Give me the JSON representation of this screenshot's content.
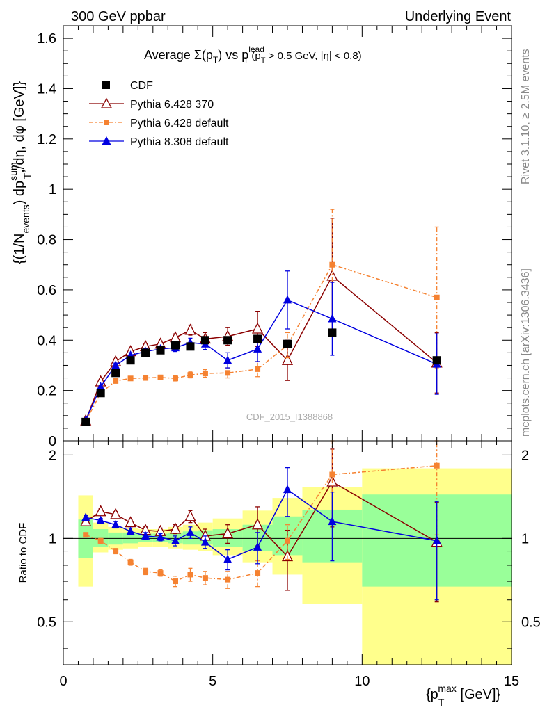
{
  "header": {
    "left": "300 GeV ppbar",
    "right": "Underlying Event"
  },
  "side_labels": {
    "rivet": "Rivet 3.1.10, ≥ 2.5M events",
    "mcplots": "mcplots.cern.ch [arXiv:1306.3436]"
  },
  "chart_data": [
    {
      "type": "line",
      "title_main": "Average Σ(p",
      "title_sub1": "T",
      "title_mid": ") vs p",
      "title_sup": "lead",
      "title_sub2": "T",
      "title_tail": " (p",
      "title_sub3": "T",
      "title_end": " > 0.5 GeV, |η| < 0.8)",
      "ylabel": "{(1/N events) dp T sum /dη, dφ [GeV]}",
      "ylabel_parts": {
        "a": "{(1/N",
        "a_sub": "events",
        "b": ") dp",
        "b_sup": "sum",
        "b_sub": "T",
        "c": ",/dη, dφ [GeV]}"
      },
      "watermark": "CDF_2015_I1388868",
      "xlim": [
        0,
        15
      ],
      "ylim": [
        0,
        1.65
      ],
      "y_ticks": [
        "0",
        "0.2",
        "0.4",
        "0.6",
        "0.8",
        "1",
        "1.2",
        "1.4",
        "1.6"
      ],
      "legend_position": "top-left",
      "series": [
        {
          "name": "CDF",
          "color": "#000000",
          "marker": "square",
          "x": [
            0.75,
            1.25,
            1.75,
            2.25,
            2.75,
            3.25,
            3.75,
            4.25,
            4.75,
            5.5,
            6.5,
            7.5,
            9.0,
            12.5
          ],
          "y": [
            0.075,
            0.19,
            0.27,
            0.32,
            0.35,
            0.36,
            0.38,
            0.375,
            0.4,
            0.4,
            0.405,
            0.385,
            0.43,
            0.32
          ],
          "yerr": [
            0,
            0,
            0,
            0,
            0,
            0,
            0,
            0,
            0,
            0,
            0,
            0,
            0,
            0
          ]
        },
        {
          "name": "Pythia 6.428 370",
          "color": "#8b0000",
          "marker": "open-triangle",
          "x": [
            0.75,
            1.25,
            1.75,
            2.25,
            2.75,
            3.25,
            3.75,
            4.25,
            4.75,
            5.5,
            6.5,
            7.5,
            9.0,
            12.5
          ],
          "y": [
            0.08,
            0.235,
            0.315,
            0.355,
            0.375,
            0.385,
            0.41,
            0.44,
            0.405,
            0.415,
            0.445,
            0.32,
            0.655,
            0.31
          ],
          "yerr": [
            0.005,
            0.008,
            0.01,
            0.01,
            0.012,
            0.012,
            0.015,
            0.02,
            0.025,
            0.035,
            0.07,
            0.08,
            0.23,
            0.12
          ]
        },
        {
          "name": "Pythia 6.428 default",
          "color": "#f58231",
          "marker": "small-square",
          "x": [
            0.75,
            1.25,
            1.75,
            2.25,
            2.75,
            3.25,
            3.75,
            4.25,
            4.75,
            5.5,
            6.5,
            7.5,
            9.0,
            12.5
          ],
          "y": [
            0.078,
            0.19,
            0.238,
            0.248,
            0.25,
            0.252,
            0.248,
            0.262,
            0.268,
            0.27,
            0.285,
            0.38,
            0.7,
            0.57
          ],
          "yerr": [
            0.004,
            0.006,
            0.008,
            0.008,
            0.009,
            0.009,
            0.01,
            0.012,
            0.015,
            0.02,
            0.03,
            0.05,
            0.22,
            0.28
          ]
        },
        {
          "name": "Pythia 8.308 default",
          "color": "#0000e0",
          "marker": "triangle",
          "x": [
            0.75,
            1.25,
            1.75,
            2.25,
            2.75,
            3.25,
            3.75,
            4.25,
            4.75,
            5.5,
            6.5,
            7.5,
            9.0,
            12.5
          ],
          "y": [
            0.082,
            0.215,
            0.3,
            0.34,
            0.355,
            0.365,
            0.37,
            0.39,
            0.385,
            0.32,
            0.365,
            0.56,
            0.485,
            0.305
          ],
          "yerr": [
            0.004,
            0.007,
            0.009,
            0.01,
            0.011,
            0.012,
            0.015,
            0.018,
            0.022,
            0.03,
            0.05,
            0.115,
            0.145,
            0.12
          ]
        }
      ]
    },
    {
      "type": "line",
      "ylabel": "Ratio to CDF",
      "xlabel_a": "{p",
      "xlabel_sub": "T",
      "xlabel_sup": "max",
      "xlabel_b": " [GeV]}",
      "xlim": [
        0,
        15
      ],
      "ylim": [
        0.35,
        2.25
      ],
      "x_ticks": [
        "0",
        "5",
        "10",
        "15"
      ],
      "y_ticks": [
        "0.5",
        "1",
        "2"
      ],
      "bands": [
        {
          "x0": 0.5,
          "x1": 1.0,
          "yellow": [
            0.67,
            1.43
          ],
          "green": [
            0.85,
            1.17
          ]
        },
        {
          "x0": 1.0,
          "x1": 1.5,
          "yellow": [
            0.89,
            1.14
          ],
          "green": [
            0.93,
            1.08
          ]
        },
        {
          "x0": 1.5,
          "x1": 2.0,
          "yellow": [
            0.91,
            1.1
          ],
          "green": [
            0.95,
            1.05
          ]
        },
        {
          "x0": 2.0,
          "x1": 2.5,
          "yellow": [
            0.92,
            1.09
          ],
          "green": [
            0.96,
            1.05
          ]
        },
        {
          "x0": 2.5,
          "x1": 3.0,
          "yellow": [
            0.93,
            1.08
          ],
          "green": [
            0.97,
            1.04
          ]
        },
        {
          "x0": 3.0,
          "x1": 3.5,
          "yellow": [
            0.93,
            1.08
          ],
          "green": [
            0.97,
            1.04
          ]
        },
        {
          "x0": 3.5,
          "x1": 4.0,
          "yellow": [
            0.92,
            1.1
          ],
          "green": [
            0.96,
            1.05
          ]
        },
        {
          "x0": 4.0,
          "x1": 4.5,
          "yellow": [
            0.91,
            1.12
          ],
          "green": [
            0.95,
            1.06
          ]
        },
        {
          "x0": 4.5,
          "x1": 5.0,
          "yellow": [
            0.9,
            1.14
          ],
          "green": [
            0.95,
            1.07
          ]
        },
        {
          "x0": 5.0,
          "x1": 6.0,
          "yellow": [
            0.87,
            1.18
          ],
          "green": [
            0.93,
            1.08
          ]
        },
        {
          "x0": 6.0,
          "x1": 7.0,
          "yellow": [
            0.82,
            1.26
          ],
          "green": [
            0.9,
            1.12
          ]
        },
        {
          "x0": 7.0,
          "x1": 8.0,
          "yellow": [
            0.74,
            1.4
          ],
          "green": [
            0.87,
            1.2
          ]
        },
        {
          "x0": 8.0,
          "x1": 10.0,
          "yellow": [
            0.58,
            1.53
          ],
          "green": [
            0.82,
            1.27
          ]
        },
        {
          "x0": 10.0,
          "x1": 15.0,
          "yellow": [
            0.33,
            1.79
          ],
          "green": [
            0.67,
            1.44
          ]
        }
      ],
      "series": [
        {
          "name": "Pythia 6.428 370",
          "color": "#8b0000",
          "marker": "open-triangle",
          "x": [
            0.75,
            1.25,
            1.75,
            2.25,
            2.75,
            3.25,
            3.75,
            4.25,
            4.75,
            5.5,
            6.5,
            7.5,
            9.0,
            12.5
          ],
          "y": [
            1.15,
            1.25,
            1.22,
            1.14,
            1.07,
            1.06,
            1.08,
            1.2,
            1.02,
            1.04,
            1.12,
            0.86,
            1.6,
            0.97
          ],
          "yerr": [
            0.02,
            0.03,
            0.03,
            0.03,
            0.03,
            0.03,
            0.04,
            0.06,
            0.06,
            0.08,
            0.18,
            0.21,
            0.5,
            0.38
          ]
        },
        {
          "name": "Pythia 6.428 default",
          "color": "#f58231",
          "marker": "small-square",
          "x": [
            0.75,
            1.25,
            1.75,
            2.25,
            2.75,
            3.25,
            3.75,
            4.25,
            4.75,
            5.5,
            6.5,
            7.5,
            9.0,
            12.5
          ],
          "y": [
            1.03,
            0.98,
            0.9,
            0.82,
            0.76,
            0.75,
            0.7,
            0.74,
            0.72,
            0.71,
            0.75,
            0.98,
            1.7,
            1.83
          ],
          "yerr": [
            0.01,
            0.02,
            0.02,
            0.02,
            0.02,
            0.02,
            0.03,
            0.04,
            0.04,
            0.05,
            0.08,
            0.14,
            0.55,
            0.8
          ]
        },
        {
          "name": "Pythia 8.308 default",
          "color": "#0000e0",
          "marker": "triangle",
          "x": [
            0.75,
            1.25,
            1.75,
            2.25,
            2.75,
            3.25,
            3.75,
            4.25,
            4.75,
            5.5,
            6.5,
            7.5,
            9.0,
            12.5
          ],
          "y": [
            1.19,
            1.16,
            1.12,
            1.06,
            1.02,
            1.01,
            0.98,
            1.05,
            0.97,
            0.84,
            0.93,
            1.5,
            1.15,
            0.98
          ],
          "yerr": [
            0.02,
            0.02,
            0.03,
            0.03,
            0.03,
            0.03,
            0.04,
            0.05,
            0.05,
            0.07,
            0.12,
            0.3,
            0.32,
            0.38
          ]
        }
      ]
    }
  ]
}
